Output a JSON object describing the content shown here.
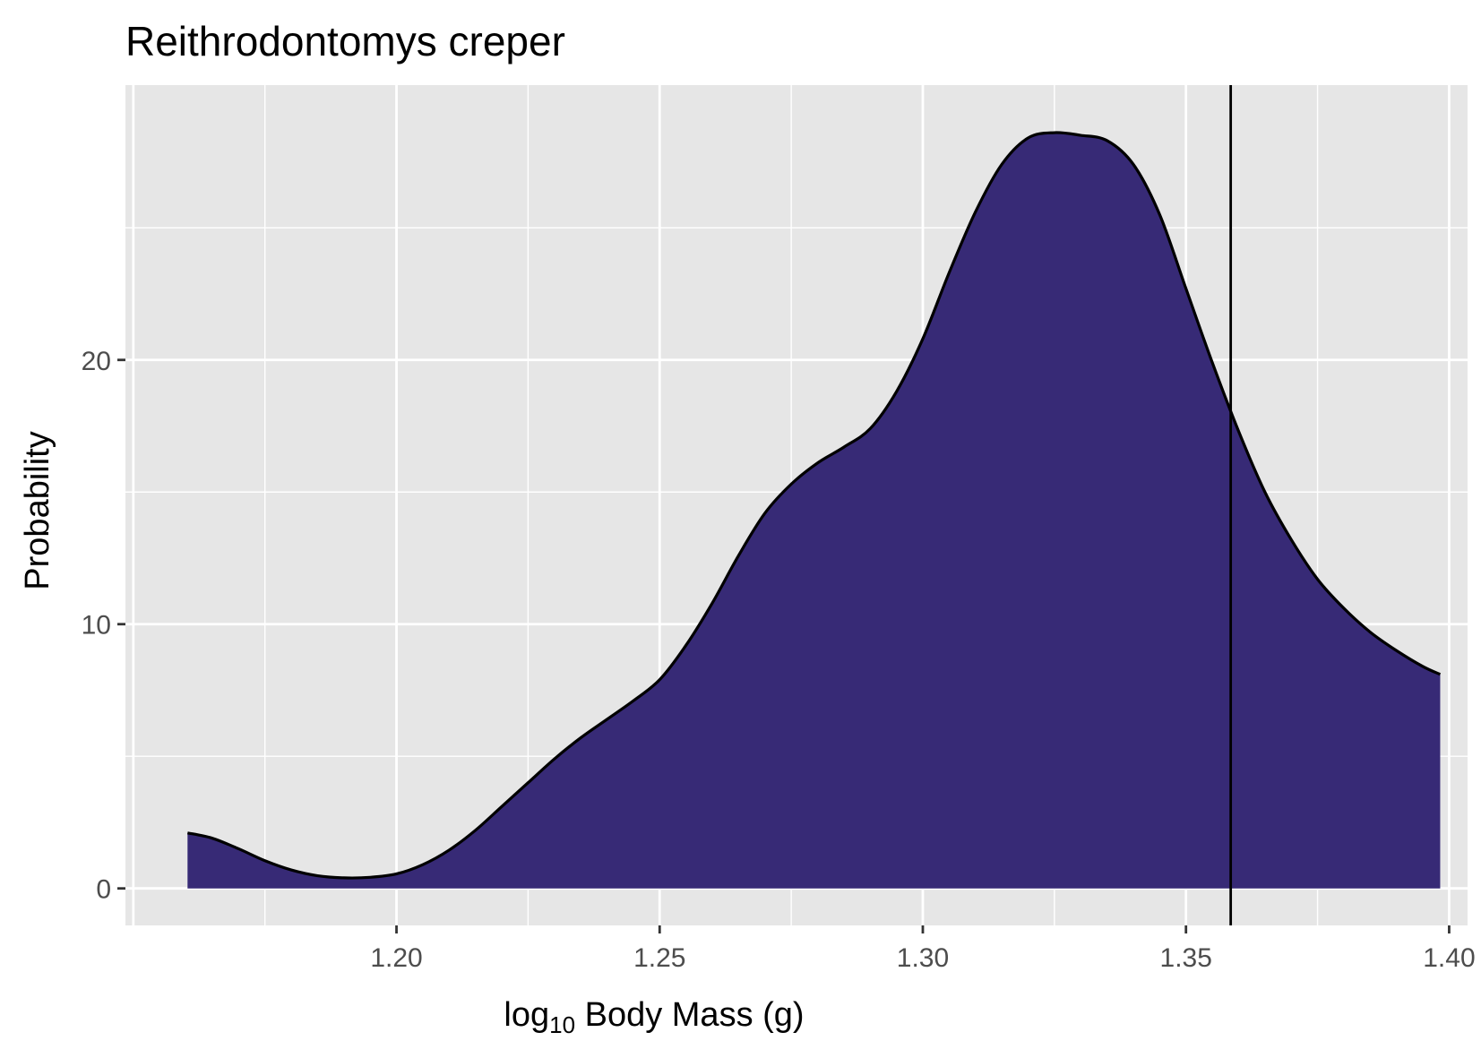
{
  "chart_data": {
    "type": "area",
    "title": "Reithrodontomys creper",
    "xlabel": {
      "prefix": "log",
      "subscript": "10",
      "suffix": " Body Mass (g)"
    },
    "ylabel": "Probability",
    "xlim": [
      1.1485,
      1.4035
    ],
    "ylim": [
      -1.4,
      30.4
    ],
    "x_ticks": [
      1.2,
      1.25,
      1.3,
      1.35,
      1.4
    ],
    "x_tick_labels": [
      "1.20",
      "1.25",
      "1.30",
      "1.35",
      "1.40"
    ],
    "y_ticks": [
      0,
      10,
      20
    ],
    "y_tick_labels": [
      "0",
      "10",
      "20"
    ],
    "grid": true,
    "fill_color": "#372A76",
    "line_color": "#000000",
    "panel_color": "#E6E6E6",
    "vline_x": 1.3585,
    "series": [
      {
        "x": [
          1.1603,
          1.165,
          1.17,
          1.175,
          1.18,
          1.185,
          1.19,
          1.195,
          1.2,
          1.205,
          1.21,
          1.215,
          1.22,
          1.225,
          1.23,
          1.235,
          1.24,
          1.245,
          1.25,
          1.255,
          1.26,
          1.265,
          1.27,
          1.275,
          1.28,
          1.285,
          1.29,
          1.295,
          1.3,
          1.305,
          1.31,
          1.315,
          1.32,
          1.325,
          1.33,
          1.335,
          1.34,
          1.345,
          1.35,
          1.355,
          1.36,
          1.365,
          1.37,
          1.375,
          1.38,
          1.385,
          1.39,
          1.395,
          1.3983
        ],
        "y": [
          2.1,
          1.9,
          1.5,
          1.05,
          0.7,
          0.48,
          0.4,
          0.42,
          0.55,
          0.9,
          1.45,
          2.2,
          3.1,
          4.0,
          4.9,
          5.7,
          6.4,
          7.1,
          7.9,
          9.2,
          10.8,
          12.6,
          14.2,
          15.3,
          16.1,
          16.7,
          17.4,
          18.8,
          20.8,
          23.3,
          25.6,
          27.4,
          28.4,
          28.6,
          28.5,
          28.3,
          27.4,
          25.5,
          22.7,
          19.9,
          17.3,
          15.0,
          13.2,
          11.7,
          10.6,
          9.7,
          9.0,
          8.4,
          8.1
        ]
      }
    ]
  }
}
